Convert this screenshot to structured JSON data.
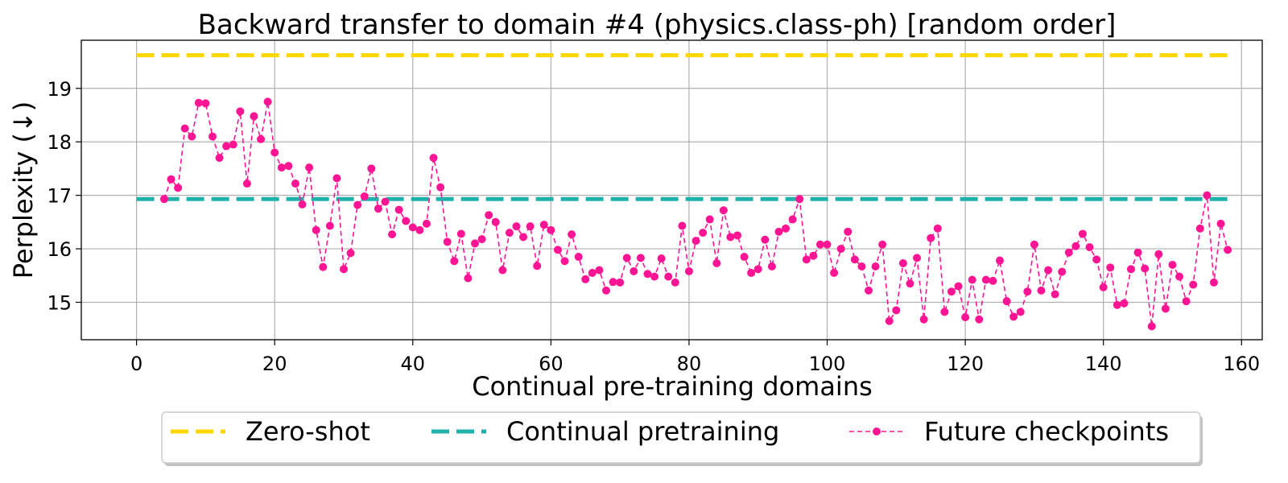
{
  "chart_data": {
    "type": "line",
    "title": "Backward transfer to domain #4 (physics.class-ph) [random order]",
    "xlabel": "Continual pre-training domains",
    "ylabel": "Perplexity (↓)",
    "xlim": [
      -8,
      163
    ],
    "ylim": [
      14.3,
      19.9
    ],
    "xticks": [
      0,
      20,
      40,
      60,
      80,
      100,
      120,
      140,
      160
    ],
    "yticks": [
      15,
      16,
      17,
      18,
      19
    ],
    "grid": true,
    "legend_position": "bottom-center",
    "series": [
      {
        "name": "Zero-shot",
        "style": "dashed-line",
        "color": "#FFD700",
        "x": [
          0,
          158
        ],
        "y": [
          19.62,
          19.62
        ]
      },
      {
        "name": "Continual pretraining",
        "style": "dashed-line",
        "color": "#20B2AA",
        "x": [
          0,
          158
        ],
        "y": [
          16.93,
          16.93
        ]
      },
      {
        "name": "Future checkpoints",
        "style": "dashed-line-markers",
        "color": "#FF1493",
        "x": [
          4,
          5,
          6,
          7,
          8,
          9,
          10,
          11,
          12,
          13,
          14,
          15,
          16,
          17,
          18,
          19,
          20,
          21,
          22,
          23,
          24,
          25,
          26,
          27,
          28,
          29,
          30,
          31,
          32,
          33,
          34,
          35,
          36,
          37,
          38,
          39,
          40,
          41,
          42,
          43,
          44,
          45,
          46,
          47,
          48,
          49,
          50,
          51,
          52,
          53,
          54,
          55,
          56,
          57,
          58,
          59,
          60,
          61,
          62,
          63,
          64,
          65,
          66,
          67,
          68,
          69,
          70,
          71,
          72,
          73,
          74,
          75,
          76,
          77,
          78,
          79,
          80,
          81,
          82,
          83,
          84,
          85,
          86,
          87,
          88,
          89,
          90,
          91,
          92,
          93,
          94,
          95,
          96,
          97,
          98,
          99,
          100,
          101,
          102,
          103,
          104,
          105,
          106,
          107,
          108,
          109,
          110,
          111,
          112,
          113,
          114,
          115,
          116,
          117,
          118,
          119,
          120,
          121,
          122,
          123,
          124,
          125,
          126,
          127,
          128,
          129,
          130,
          131,
          132,
          133,
          134,
          135,
          136,
          137,
          138,
          139,
          140,
          141,
          142,
          143,
          144,
          145,
          146,
          147,
          148,
          149,
          150,
          151,
          152,
          153,
          154,
          155,
          156,
          157,
          158
        ],
        "y": [
          16.93,
          17.3,
          17.14,
          18.25,
          18.1,
          18.73,
          18.72,
          18.1,
          17.7,
          17.92,
          17.95,
          18.57,
          17.22,
          18.48,
          18.05,
          18.75,
          17.8,
          17.52,
          17.55,
          17.22,
          16.83,
          17.52,
          16.35,
          15.66,
          16.43,
          17.32,
          15.62,
          15.92,
          16.82,
          16.98,
          17.5,
          16.75,
          16.88,
          16.27,
          16.73,
          16.52,
          16.4,
          16.35,
          16.47,
          17.7,
          17.15,
          16.13,
          15.77,
          16.28,
          15.45,
          16.1,
          16.18,
          16.63,
          16.5,
          15.6,
          16.3,
          16.42,
          16.22,
          16.42,
          15.68,
          16.45,
          16.35,
          15.98,
          15.77,
          16.27,
          15.85,
          15.43,
          15.55,
          15.6,
          15.22,
          15.38,
          15.37,
          15.83,
          15.58,
          15.83,
          15.53,
          15.48,
          15.82,
          15.48,
          15.37,
          16.43,
          15.58,
          16.15,
          16.3,
          16.55,
          15.73,
          16.72,
          16.22,
          16.25,
          15.85,
          15.55,
          15.62,
          16.17,
          15.67,
          16.32,
          16.38,
          16.55,
          16.93,
          15.8,
          15.87,
          16.08,
          16.08,
          15.55,
          16.0,
          16.32,
          15.8,
          15.67,
          15.22,
          15.67,
          16.08,
          14.65,
          14.85,
          15.73,
          15.35,
          15.83,
          14.68,
          16.2,
          16.38,
          14.82,
          15.2,
          15.3,
          14.72,
          15.42,
          14.68,
          15.42,
          15.4,
          15.78,
          15.02,
          14.73,
          14.82,
          15.2,
          16.08,
          15.22,
          15.6,
          15.15,
          15.57,
          15.93,
          16.05,
          16.28,
          16.03,
          15.8,
          15.28,
          15.65,
          14.95,
          14.98,
          15.62,
          15.93,
          15.63,
          14.55,
          15.9,
          14.88,
          15.7,
          15.48,
          15.02,
          15.33,
          16.38,
          17.0,
          15.37,
          16.47,
          15.98
        ]
      }
    ]
  }
}
